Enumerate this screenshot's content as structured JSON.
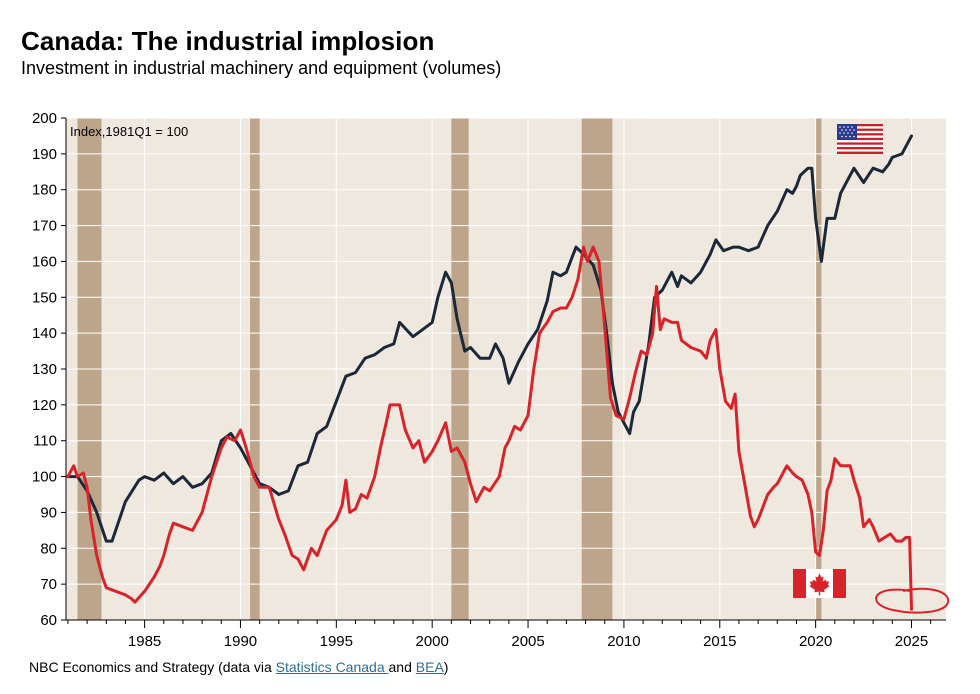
{
  "header": {
    "title": "Canada: The industrial implosion",
    "subtitle": "Investment in industrial machinery and equipment (volumes)"
  },
  "footer": {
    "prefix": "NBC Economics and Strategy (data via ",
    "link1": "Statistics Canada ",
    "middle": "and ",
    "link2": "BEA",
    "suffix": ")"
  },
  "colors": {
    "background": "#efe8df",
    "grid": "#ffffff",
    "recession": "#bca58a",
    "canada": "#d7232a",
    "us": "#1b2838"
  },
  "chart_data": {
    "type": "line",
    "title": "Canada: The industrial implosion",
    "subtitle": "Investment in industrial machinery and equipment (volumes)",
    "annotation": "Index,1981Q1 = 100",
    "xlabel": "",
    "ylabel": "",
    "xlim": [
      1980.9,
      2026.8
    ],
    "ylim": [
      60,
      200
    ],
    "yticks": [
      60,
      70,
      80,
      90,
      100,
      110,
      120,
      130,
      140,
      150,
      160,
      170,
      180,
      190,
      200
    ],
    "xticks": [
      1985,
      1990,
      1995,
      2000,
      2005,
      2010,
      2015,
      2020,
      2025
    ],
    "grid": true,
    "recessions": [
      [
        1981.5,
        1982.75
      ],
      [
        1990.5,
        1991.0
      ],
      [
        2001.0,
        2001.9
      ],
      [
        2007.8,
        2009.4
      ],
      [
        2020.0,
        2020.3
      ]
    ],
    "legend": "flags: United States (top-right), Canada (bottom-right)",
    "series": [
      {
        "name": "United States",
        "flag": "us-flag",
        "points": [
          [
            1981.0,
            100
          ],
          [
            1981.5,
            100
          ],
          [
            1982.0,
            96
          ],
          [
            1982.5,
            90
          ],
          [
            1983.0,
            82
          ],
          [
            1983.3,
            82
          ],
          [
            1984.0,
            93
          ],
          [
            1984.7,
            99
          ],
          [
            1985.0,
            100
          ],
          [
            1985.5,
            99
          ],
          [
            1986.0,
            101
          ],
          [
            1986.5,
            98
          ],
          [
            1987.0,
            100
          ],
          [
            1987.5,
            97
          ],
          [
            1988.0,
            98
          ],
          [
            1988.5,
            101
          ],
          [
            1989.0,
            110
          ],
          [
            1989.5,
            112
          ],
          [
            1990.0,
            108
          ],
          [
            1990.5,
            103
          ],
          [
            1991.0,
            98
          ],
          [
            1991.5,
            97
          ],
          [
            1992.0,
            95
          ],
          [
            1992.5,
            96
          ],
          [
            1993.0,
            103
          ],
          [
            1993.5,
            104
          ],
          [
            1994.0,
            112
          ],
          [
            1994.5,
            114
          ],
          [
            1995.0,
            121
          ],
          [
            1995.5,
            128
          ],
          [
            1996.0,
            129
          ],
          [
            1996.5,
            133
          ],
          [
            1997.0,
            134
          ],
          [
            1997.5,
            136
          ],
          [
            1998.0,
            137
          ],
          [
            1998.3,
            143
          ],
          [
            1999.0,
            139
          ],
          [
            1999.5,
            141
          ],
          [
            2000.0,
            143
          ],
          [
            2000.3,
            150
          ],
          [
            2000.7,
            157
          ],
          [
            2001.0,
            154
          ],
          [
            2001.3,
            144
          ],
          [
            2001.7,
            135
          ],
          [
            2002.0,
            136
          ],
          [
            2002.5,
            133
          ],
          [
            2003.0,
            133
          ],
          [
            2003.3,
            137
          ],
          [
            2003.7,
            133
          ],
          [
            2004.0,
            126
          ],
          [
            2004.5,
            132
          ],
          [
            2005.0,
            137
          ],
          [
            2005.5,
            141
          ],
          [
            2006.0,
            149
          ],
          [
            2006.3,
            157
          ],
          [
            2006.7,
            156
          ],
          [
            2007.0,
            157
          ],
          [
            2007.5,
            164
          ],
          [
            2007.9,
            162
          ],
          [
            2008.4,
            159
          ],
          [
            2008.8,
            152
          ],
          [
            2009.1,
            140
          ],
          [
            2009.4,
            126
          ],
          [
            2009.7,
            118
          ],
          [
            2010.0,
            115
          ],
          [
            2010.3,
            112
          ],
          [
            2010.5,
            118
          ],
          [
            2010.8,
            121
          ],
          [
            2011.3,
            137
          ],
          [
            2011.6,
            150
          ],
          [
            2012.0,
            152
          ],
          [
            2012.5,
            157
          ],
          [
            2012.8,
            153
          ],
          [
            2013.0,
            156
          ],
          [
            2013.5,
            154
          ],
          [
            2014.0,
            157
          ],
          [
            2014.5,
            162
          ],
          [
            2014.8,
            166
          ],
          [
            2015.2,
            163
          ],
          [
            2015.7,
            164
          ],
          [
            2016.0,
            164
          ],
          [
            2016.5,
            163
          ],
          [
            2017.0,
            164
          ],
          [
            2017.5,
            170
          ],
          [
            2018.0,
            174
          ],
          [
            2018.5,
            180
          ],
          [
            2018.8,
            179
          ],
          [
            2019.0,
            181
          ],
          [
            2019.2,
            184
          ],
          [
            2019.6,
            186
          ],
          [
            2019.8,
            186
          ],
          [
            2020.0,
            172
          ],
          [
            2020.3,
            160
          ],
          [
            2020.6,
            172
          ],
          [
            2021.0,
            172
          ],
          [
            2021.3,
            179
          ],
          [
            2021.7,
            183
          ],
          [
            2022.0,
            186
          ],
          [
            2022.5,
            182
          ],
          [
            2023.0,
            186
          ],
          [
            2023.5,
            185
          ],
          [
            2023.8,
            187
          ],
          [
            2024.0,
            189
          ],
          [
            2024.5,
            190
          ],
          [
            2025.0,
            195
          ]
        ]
      },
      {
        "name": "Canada",
        "flag": "canada-flag",
        "points": [
          [
            1981.0,
            100
          ],
          [
            1981.3,
            103
          ],
          [
            1981.5,
            100
          ],
          [
            1981.8,
            101
          ],
          [
            1982.0,
            97
          ],
          [
            1982.2,
            88
          ],
          [
            1982.5,
            78
          ],
          [
            1982.8,
            72
          ],
          [
            1983.0,
            69
          ],
          [
            1983.5,
            68
          ],
          [
            1984.0,
            67
          ],
          [
            1984.3,
            66
          ],
          [
            1984.5,
            65
          ],
          [
            1985.0,
            68
          ],
          [
            1985.5,
            72
          ],
          [
            1985.8,
            75
          ],
          [
            1986.0,
            78
          ],
          [
            1986.3,
            84
          ],
          [
            1986.5,
            87
          ],
          [
            1987.0,
            86
          ],
          [
            1987.5,
            85
          ],
          [
            1988.0,
            90
          ],
          [
            1988.5,
            100
          ],
          [
            1989.0,
            108
          ],
          [
            1989.3,
            111
          ],
          [
            1989.7,
            110
          ],
          [
            1990.0,
            113
          ],
          [
            1990.3,
            108
          ],
          [
            1990.7,
            100
          ],
          [
            1991.0,
            97
          ],
          [
            1991.5,
            97
          ],
          [
            1992.0,
            88
          ],
          [
            1992.3,
            84
          ],
          [
            1992.7,
            78
          ],
          [
            1993.0,
            77
          ],
          [
            1993.3,
            74
          ],
          [
            1993.7,
            80
          ],
          [
            1994.0,
            78
          ],
          [
            1994.5,
            85
          ],
          [
            1995.0,
            88
          ],
          [
            1995.3,
            92
          ],
          [
            1995.5,
            99
          ],
          [
            1995.7,
            90
          ],
          [
            1996.0,
            91
          ],
          [
            1996.3,
            95
          ],
          [
            1996.6,
            94
          ],
          [
            1997.0,
            100
          ],
          [
            1997.3,
            108
          ],
          [
            1997.6,
            115
          ],
          [
            1997.8,
            120
          ],
          [
            1998.0,
            120
          ],
          [
            1998.3,
            120
          ],
          [
            1998.6,
            113
          ],
          [
            1999.0,
            108
          ],
          [
            1999.3,
            110
          ],
          [
            1999.6,
            104
          ],
          [
            2000.0,
            107
          ],
          [
            2000.3,
            110
          ],
          [
            2000.7,
            115
          ],
          [
            2001.0,
            107
          ],
          [
            2001.3,
            108
          ],
          [
            2001.7,
            104
          ],
          [
            2002.0,
            98
          ],
          [
            2002.3,
            93
          ],
          [
            2002.7,
            97
          ],
          [
            2003.0,
            96
          ],
          [
            2003.5,
            100
          ],
          [
            2003.8,
            108
          ],
          [
            2004.0,
            110
          ],
          [
            2004.3,
            114
          ],
          [
            2004.6,
            113
          ],
          [
            2005.0,
            117
          ],
          [
            2005.3,
            130
          ],
          [
            2005.6,
            140
          ],
          [
            2006.0,
            143
          ],
          [
            2006.3,
            146
          ],
          [
            2006.7,
            147
          ],
          [
            2007.0,
            147
          ],
          [
            2007.3,
            150
          ],
          [
            2007.6,
            155
          ],
          [
            2007.9,
            164
          ],
          [
            2008.1,
            160
          ],
          [
            2008.4,
            164
          ],
          [
            2008.7,
            160
          ],
          [
            2008.9,
            148
          ],
          [
            2009.1,
            135
          ],
          [
            2009.3,
            122
          ],
          [
            2009.6,
            117
          ],
          [
            2010.0,
            116
          ],
          [
            2010.3,
            122
          ],
          [
            2010.6,
            129
          ],
          [
            2010.9,
            135
          ],
          [
            2011.2,
            134
          ],
          [
            2011.5,
            140
          ],
          [
            2011.7,
            153
          ],
          [
            2011.9,
            141
          ],
          [
            2012.1,
            144
          ],
          [
            2012.5,
            143
          ],
          [
            2012.8,
            143
          ],
          [
            2013.0,
            138
          ],
          [
            2013.5,
            136
          ],
          [
            2014.0,
            135
          ],
          [
            2014.3,
            133
          ],
          [
            2014.5,
            138
          ],
          [
            2014.8,
            141
          ],
          [
            2015.0,
            130
          ],
          [
            2015.3,
            121
          ],
          [
            2015.6,
            119
          ],
          [
            2015.8,
            123
          ],
          [
            2016.0,
            107
          ],
          [
            2016.3,
            98
          ],
          [
            2016.6,
            89
          ],
          [
            2016.8,
            86
          ],
          [
            2017.0,
            88
          ],
          [
            2017.5,
            95
          ],
          [
            2017.8,
            97
          ],
          [
            2018.0,
            98
          ],
          [
            2018.3,
            101
          ],
          [
            2018.5,
            103
          ],
          [
            2018.8,
            101
          ],
          [
            2019.0,
            100
          ],
          [
            2019.3,
            99
          ],
          [
            2019.6,
            95
          ],
          [
            2019.8,
            90
          ],
          [
            2020.0,
            79
          ],
          [
            2020.2,
            78
          ],
          [
            2020.4,
            85
          ],
          [
            2020.6,
            96
          ],
          [
            2020.8,
            99
          ],
          [
            2021.0,
            105
          ],
          [
            2021.3,
            103
          ],
          [
            2021.6,
            103
          ],
          [
            2021.8,
            103
          ],
          [
            2022.0,
            99
          ],
          [
            2022.3,
            94
          ],
          [
            2022.5,
            86
          ],
          [
            2022.8,
            88
          ],
          [
            2023.0,
            86
          ],
          [
            2023.3,
            82
          ],
          [
            2023.6,
            83
          ],
          [
            2023.9,
            84
          ],
          [
            2024.2,
            82
          ],
          [
            2024.5,
            82
          ],
          [
            2024.7,
            83
          ],
          [
            2024.9,
            83
          ],
          [
            2025.0,
            63
          ]
        ]
      }
    ]
  }
}
